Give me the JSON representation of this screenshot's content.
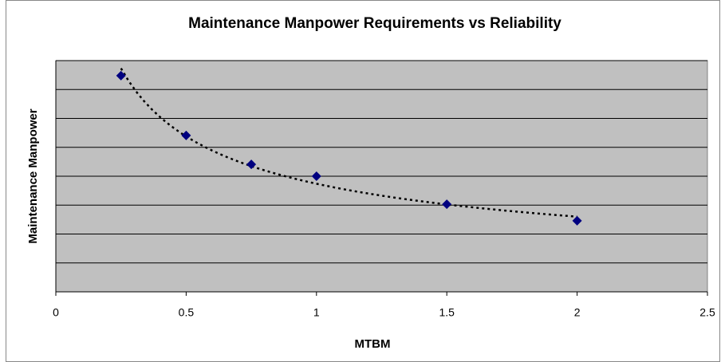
{
  "chart_data": {
    "type": "scatter",
    "title": "Maintenance Manpower Requirements vs Reliability",
    "x_label": "MTBM",
    "y_label": "Maintenance Manpower",
    "series": [
      {
        "color": "#000080",
        "x": [
          0.25,
          0.5,
          0.75,
          1,
          1.5,
          2
        ],
        "values": [
          7.48,
          5.41,
          4.41,
          4.0,
          3.03,
          2.46
        ]
      }
    ],
    "xlim": [
      0,
      2.5
    ],
    "xticks": [
      0,
      0.5,
      1,
      1.5,
      2,
      2.5
    ],
    "ylim": [
      0,
      8
    ],
    "yticks": [
      0,
      1,
      2,
      3,
      4,
      5,
      6,
      7,
      8
    ],
    "grid": true,
    "trendline": "power",
    "plot_background": "#c0c0c0"
  }
}
